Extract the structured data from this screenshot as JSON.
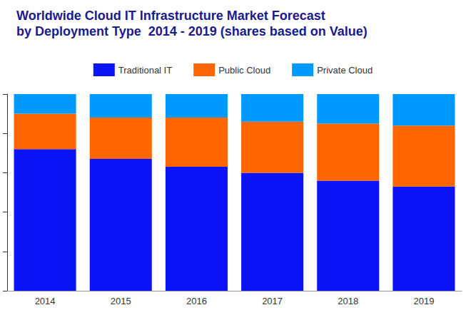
{
  "chart_data": {
    "type": "bar",
    "title": "Worldwide Cloud IT Infrastructure Market Forecast\nby Deployment Type  2014 - 2019 (shares based on Value)",
    "categories": [
      "2014",
      "2015",
      "2016",
      "2017",
      "2018",
      "2019"
    ],
    "series": [
      {
        "name": "Traditional IT",
        "color": "#0a14f5",
        "values": [
          72,
          67,
          63,
          60,
          56,
          53
        ]
      },
      {
        "name": "Public Cloud",
        "color": "#ff6600",
        "values": [
          18,
          21,
          25,
          26,
          29,
          31
        ]
      },
      {
        "name": "Private Cloud",
        "color": "#0099ff",
        "values": [
          10,
          12,
          12,
          14,
          15,
          16
        ]
      }
    ],
    "ylim": [
      0,
      100
    ],
    "yticks": [
      0,
      20,
      40,
      60,
      80,
      100
    ],
    "stacked": true,
    "grid": false,
    "legend": "top",
    "tick_labels": "x"
  }
}
